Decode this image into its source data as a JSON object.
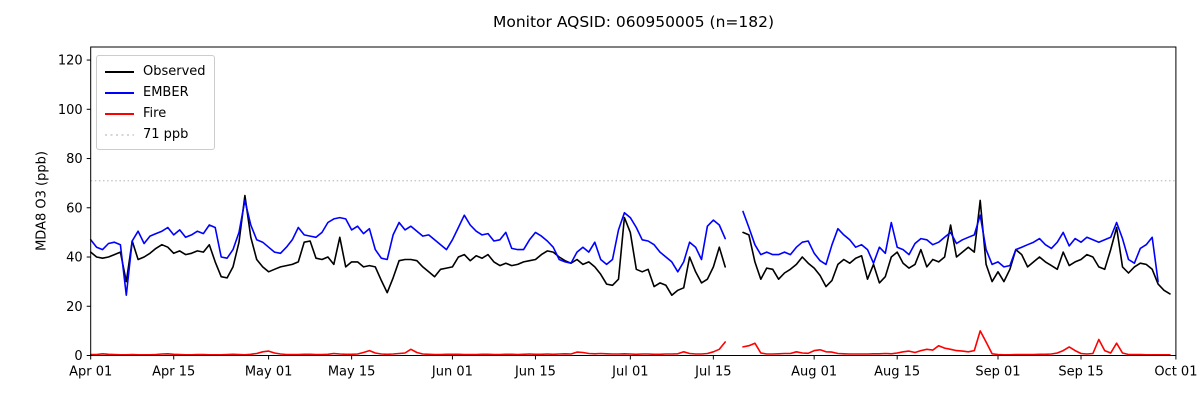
{
  "chart_data": {
    "type": "line",
    "title": "Monitor AQSID: 060950005 (n=182)",
    "ylabel": "MDA8 O3 (ppb)",
    "xlabel": "",
    "x_start_label": "Apr 01",
    "x_range_days": 183,
    "ylim": [
      0,
      125.3
    ],
    "y_ticks": [
      0,
      20,
      40,
      60,
      80,
      100,
      120
    ],
    "x_ticks": [
      {
        "day": 0,
        "label": "Apr 01"
      },
      {
        "day": 14,
        "label": "Apr 15"
      },
      {
        "day": 30,
        "label": "May 01"
      },
      {
        "day": 44,
        "label": "May 15"
      },
      {
        "day": 61,
        "label": "Jun 01"
      },
      {
        "day": 75,
        "label": "Jun 15"
      },
      {
        "day": 91,
        "label": "Jul 01"
      },
      {
        "day": 105,
        "label": "Jul 15"
      },
      {
        "day": 122,
        "label": "Aug 01"
      },
      {
        "day": 136,
        "label": "Aug 15"
      },
      {
        "day": 153,
        "label": "Sep 01"
      },
      {
        "day": 167,
        "label": "Sep 15"
      },
      {
        "day": 183,
        "label": "Oct 01"
      }
    ],
    "grid": false,
    "legend_position": "upper-left",
    "threshold": {
      "value": 71,
      "label": "71 ppb",
      "color": "#c8c8c8",
      "style": "dotted"
    },
    "series": [
      {
        "name": "Observed",
        "color": "#000000",
        "style": "solid",
        "values": [
          42,
          40,
          39.5,
          40,
          41,
          42,
          30,
          46.5,
          39,
          40,
          41.5,
          43.5,
          45,
          44,
          41.5,
          42.5,
          41,
          41.5,
          42.5,
          42,
          45,
          38,
          32,
          31.5,
          36,
          46,
          65,
          48,
          39,
          36,
          34,
          35,
          36,
          36.5,
          37,
          38,
          46,
          46.5,
          39.5,
          39,
          40,
          37,
          48,
          36,
          38,
          38,
          36,
          36.5,
          36,
          30.5,
          25.5,
          31.5,
          38.5,
          39,
          39,
          38.5,
          36,
          34,
          32,
          35,
          35.5,
          36,
          40,
          41,
          38.5,
          40.5,
          39.5,
          41,
          38,
          36.5,
          37.5,
          36.5,
          37,
          38,
          38.5,
          39,
          41,
          42.5,
          42,
          40,
          38.5,
          37.5,
          39,
          37,
          38,
          36,
          33,
          29,
          28.5,
          31,
          56,
          50,
          35,
          34,
          35,
          28,
          29.5,
          28.5,
          24.5,
          26.5,
          27.5,
          40,
          34,
          29.5,
          31,
          36,
          44,
          36,
          null,
          null,
          50,
          49,
          38,
          31,
          35.5,
          35,
          31,
          33.5,
          35,
          37,
          40,
          37.5,
          35.5,
          32.5,
          28,
          30.5,
          37,
          39,
          37.5,
          39.5,
          40.5,
          31,
          37,
          29.5,
          32,
          40,
          42,
          37.5,
          35.5,
          37,
          43,
          36,
          39,
          38,
          40,
          53,
          40,
          42,
          44,
          42,
          63,
          37,
          30,
          34,
          30,
          35,
          43,
          41,
          36,
          38,
          40,
          38,
          36.5,
          35,
          42,
          36.5,
          38,
          39,
          41,
          40,
          36,
          35,
          43,
          52,
          36,
          33.5,
          36,
          37.5,
          37,
          35,
          29,
          26.5,
          25
        ]
      },
      {
        "name": "EMBER",
        "color": "#0000ff",
        "style": "solid",
        "values": [
          47,
          44,
          43,
          45.5,
          46,
          45,
          24.5,
          46.5,
          50.5,
          45.5,
          48.5,
          49.5,
          50.5,
          52,
          49,
          51,
          48,
          49,
          50.5,
          49.5,
          53,
          52,
          40,
          39.5,
          43,
          50,
          63,
          53,
          47,
          46,
          44,
          42,
          41.5,
          44,
          47,
          52,
          49,
          48.5,
          48,
          50,
          54,
          55.5,
          56,
          55.5,
          51,
          52.5,
          49.5,
          51.5,
          43,
          39.5,
          39,
          49,
          54,
          51,
          52.5,
          50.5,
          48.5,
          49,
          47,
          45,
          43,
          47,
          52,
          57,
          53,
          50.5,
          49,
          49.5,
          46.5,
          47,
          50,
          43.5,
          43,
          43,
          47,
          50,
          48.5,
          46.5,
          44,
          39,
          38,
          37.5,
          42,
          44,
          42,
          46,
          39,
          37,
          39,
          51,
          58,
          56,
          52,
          47,
          46.5,
          45,
          42,
          40,
          38,
          34,
          38,
          46,
          44,
          39,
          52.5,
          55,
          53,
          47.5,
          null,
          null,
          58.5,
          52,
          45,
          41,
          42,
          41,
          41,
          42,
          41,
          44,
          46,
          46.5,
          41.5,
          38.5,
          37,
          45,
          51.5,
          49,
          47,
          44,
          45,
          43,
          37.5,
          44,
          41.5,
          54,
          44,
          43,
          41,
          45.5,
          47.5,
          47,
          45,
          46,
          48,
          50,
          45.5,
          47,
          48,
          49,
          57,
          43,
          37,
          38,
          36,
          36.5,
          43,
          44,
          45,
          46,
          47.5,
          45,
          43.5,
          46,
          50,
          44.5,
          47.5,
          46,
          48,
          47,
          46,
          47,
          48,
          54,
          47.5,
          39,
          37.5,
          43.5,
          45,
          48,
          30,
          null,
          null
        ]
      },
      {
        "name": "Fire",
        "color": "#ff0000",
        "style": "solid",
        "values": [
          0.4,
          0.4,
          0.7,
          0.5,
          0.4,
          0.3,
          0.3,
          0.4,
          0.3,
          0.3,
          0.3,
          0.4,
          0.6,
          0.7,
          0.5,
          0.4,
          0.3,
          0.3,
          0.4,
          0.4,
          0.3,
          0.3,
          0.3,
          0.4,
          0.5,
          0.4,
          0.3,
          0.5,
          0.8,
          1.5,
          1.8,
          1.0,
          0.6,
          0.4,
          0.4,
          0.4,
          0.5,
          0.5,
          0.4,
          0.4,
          0.5,
          0.8,
          0.6,
          0.5,
          0.5,
          0.6,
          1.2,
          2.0,
          1.0,
          0.6,
          0.5,
          0.6,
          0.8,
          1.0,
          2.5,
          1.2,
          0.6,
          0.5,
          0.4,
          0.4,
          0.5,
          0.5,
          0.5,
          0.4,
          0.4,
          0.4,
          0.5,
          0.5,
          0.4,
          0.4,
          0.5,
          0.5,
          0.4,
          0.5,
          0.6,
          0.5,
          0.5,
          0.6,
          0.5,
          0.6,
          0.7,
          0.6,
          1.4,
          1.2,
          0.8,
          0.7,
          0.8,
          0.7,
          0.6,
          0.6,
          0.7,
          0.6,
          0.5,
          0.6,
          0.6,
          0.5,
          0.5,
          0.6,
          0.6,
          0.7,
          1.5,
          0.8,
          0.6,
          0.6,
          0.8,
          1.5,
          2.5,
          5.5,
          null,
          null,
          3.5,
          4.0,
          5.0,
          1.0,
          0.6,
          0.6,
          0.7,
          0.8,
          0.8,
          1.5,
          1.0,
          0.9,
          2.0,
          2.3,
          1.5,
          1.4,
          0.8,
          0.7,
          0.6,
          0.6,
          0.6,
          0.6,
          0.7,
          0.7,
          0.8,
          0.7,
          1.0,
          1.5,
          1.8,
          1.2,
          2.0,
          2.5,
          2.2,
          4.0,
          3.0,
          2.5,
          2.0,
          1.8,
          1.5,
          2.0,
          10.0,
          5.5,
          0.7,
          0.4,
          0.3,
          0.3,
          0.4,
          0.4,
          0.4,
          0.4,
          0.5,
          0.5,
          0.6,
          1.0,
          2.0,
          3.5,
          2.0,
          0.8,
          0.6,
          0.8,
          6.5,
          2.0,
          1.0,
          5.0,
          1.0,
          0.4,
          0.4,
          0.4,
          0.3,
          0.3,
          0.3,
          0.3,
          0.3
        ]
      }
    ],
    "legend": [
      {
        "label": "Observed",
        "color": "#000000",
        "dash": ""
      },
      {
        "label": "EMBER",
        "color": "#0000ff",
        "dash": ""
      },
      {
        "label": "Fire",
        "color": "#ff0000",
        "dash": ""
      },
      {
        "label": "71 ppb",
        "color": "#c8c8c8",
        "dash": "2 3.5"
      }
    ]
  }
}
